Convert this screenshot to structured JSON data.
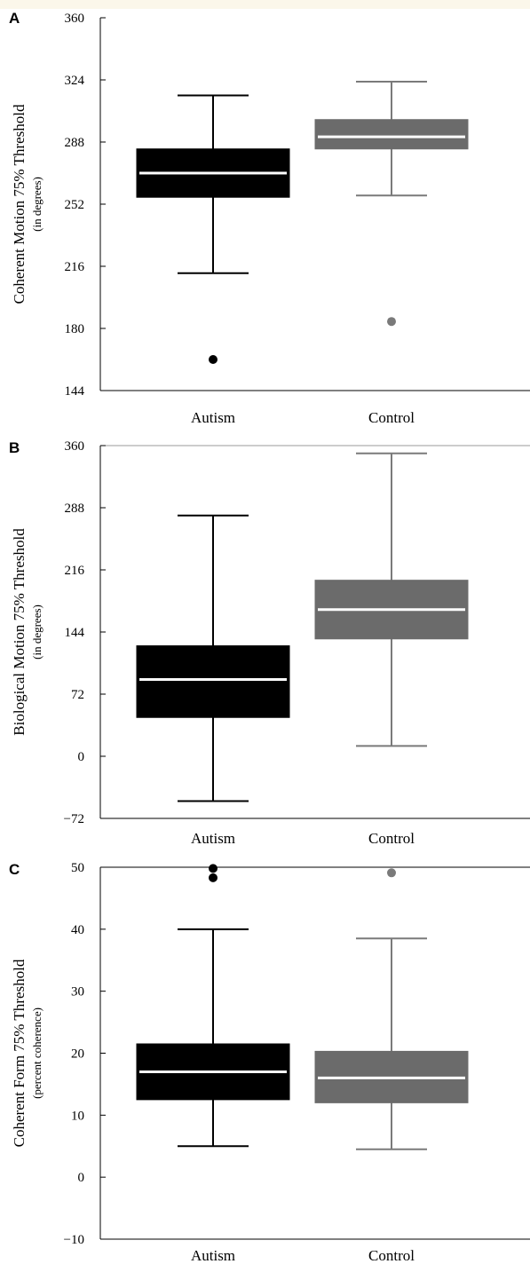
{
  "colors": {
    "background_top": "#fbf7ea",
    "autism": "#000000",
    "control": "#6b6b6b",
    "control_whisker": "#7a7a7a",
    "median": "#ffffff",
    "axis": "#000000"
  },
  "chart_data": [
    {
      "panel": "A",
      "type": "box",
      "ylabel": "Coherent Motion 75% Threshold",
      "ylabel_sub": "(in degrees)",
      "categories": [
        "Autism",
        "Control"
      ],
      "ylim": [
        144,
        360
      ],
      "yticks": [
        144,
        180,
        216,
        252,
        288,
        324,
        360
      ],
      "ytick_labels": [
        "144",
        "180",
        "216",
        "252",
        "288",
        "324",
        "360"
      ],
      "boxes": [
        {
          "group": "Autism",
          "whisker_low": 212,
          "q1": 256,
          "median": 270,
          "q3": 284,
          "whisker_high": 315,
          "outliers": [
            162
          ]
        },
        {
          "group": "Control",
          "whisker_low": 257,
          "q1": 284,
          "median": 291,
          "q3": 301,
          "whisker_high": 323,
          "outliers": [
            184
          ]
        }
      ]
    },
    {
      "panel": "B",
      "type": "box",
      "ylabel": "Biological Motion 75% Threshold",
      "ylabel_sub": "(in degrees)",
      "categories": [
        "Autism",
        "Control"
      ],
      "ylim": [
        -72,
        360
      ],
      "yticks": [
        -72,
        0,
        72,
        144,
        216,
        288,
        360
      ],
      "ytick_labels": [
        "−72",
        "0",
        "72",
        "144",
        "216",
        "288",
        "360"
      ],
      "boxes": [
        {
          "group": "Autism",
          "whisker_low": -52,
          "q1": 45,
          "median": 89,
          "q3": 128,
          "whisker_high": 279,
          "outliers": []
        },
        {
          "group": "Control",
          "whisker_low": 12,
          "q1": 136,
          "median": 170,
          "q3": 204,
          "whisker_high": 351,
          "outliers": []
        }
      ]
    },
    {
      "panel": "C",
      "type": "box",
      "ylabel": "Coherent Form 75% Threshold",
      "ylabel_sub": "(percent coherence)",
      "categories": [
        "Autism",
        "Control"
      ],
      "ylim": [
        -10,
        50
      ],
      "yticks": [
        -10,
        0,
        10,
        20,
        30,
        40,
        50
      ],
      "ytick_labels": [
        "−10",
        "0",
        "10",
        "20",
        "30",
        "40",
        "50"
      ],
      "boxes": [
        {
          "group": "Autism",
          "whisker_low": 5,
          "q1": 12.5,
          "median": 17,
          "q3": 21.5,
          "whisker_high": 40,
          "outliers": [
            48.3,
            49.8
          ]
        },
        {
          "group": "Control",
          "whisker_low": 4.5,
          "q1": 12,
          "median": 16,
          "q3": 20.3,
          "whisker_high": 38.5,
          "outliers": [
            49.1
          ]
        }
      ]
    }
  ]
}
